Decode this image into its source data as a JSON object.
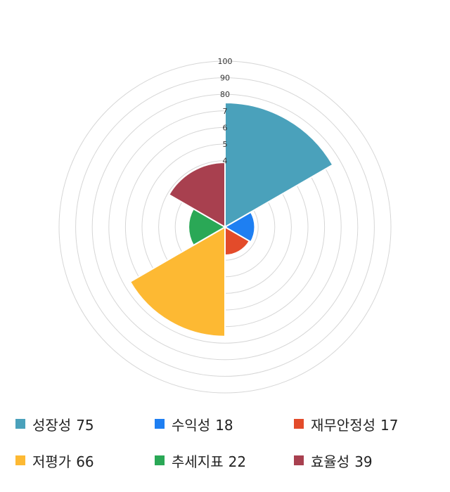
{
  "chart_data": {
    "type": "polar-area",
    "radial_max": 100,
    "radial_ticks": [
      "100",
      "90",
      "80",
      "7",
      "6",
      "5",
      "4"
    ],
    "series": [
      {
        "name": "성장성",
        "value": 75,
        "color": "#4aa1bb"
      },
      {
        "name": "수익성",
        "value": 18,
        "color": "#1e7ff2"
      },
      {
        "name": "재무안정성",
        "value": 17,
        "color": "#e34b2a"
      },
      {
        "name": "저평가",
        "value": 66,
        "color": "#fdb933"
      },
      {
        "name": "추세지표",
        "value": 22,
        "color": "#2aa856"
      },
      {
        "name": "효율성",
        "value": 39,
        "color": "#a8404f"
      }
    ],
    "legend_position": "bottom"
  }
}
